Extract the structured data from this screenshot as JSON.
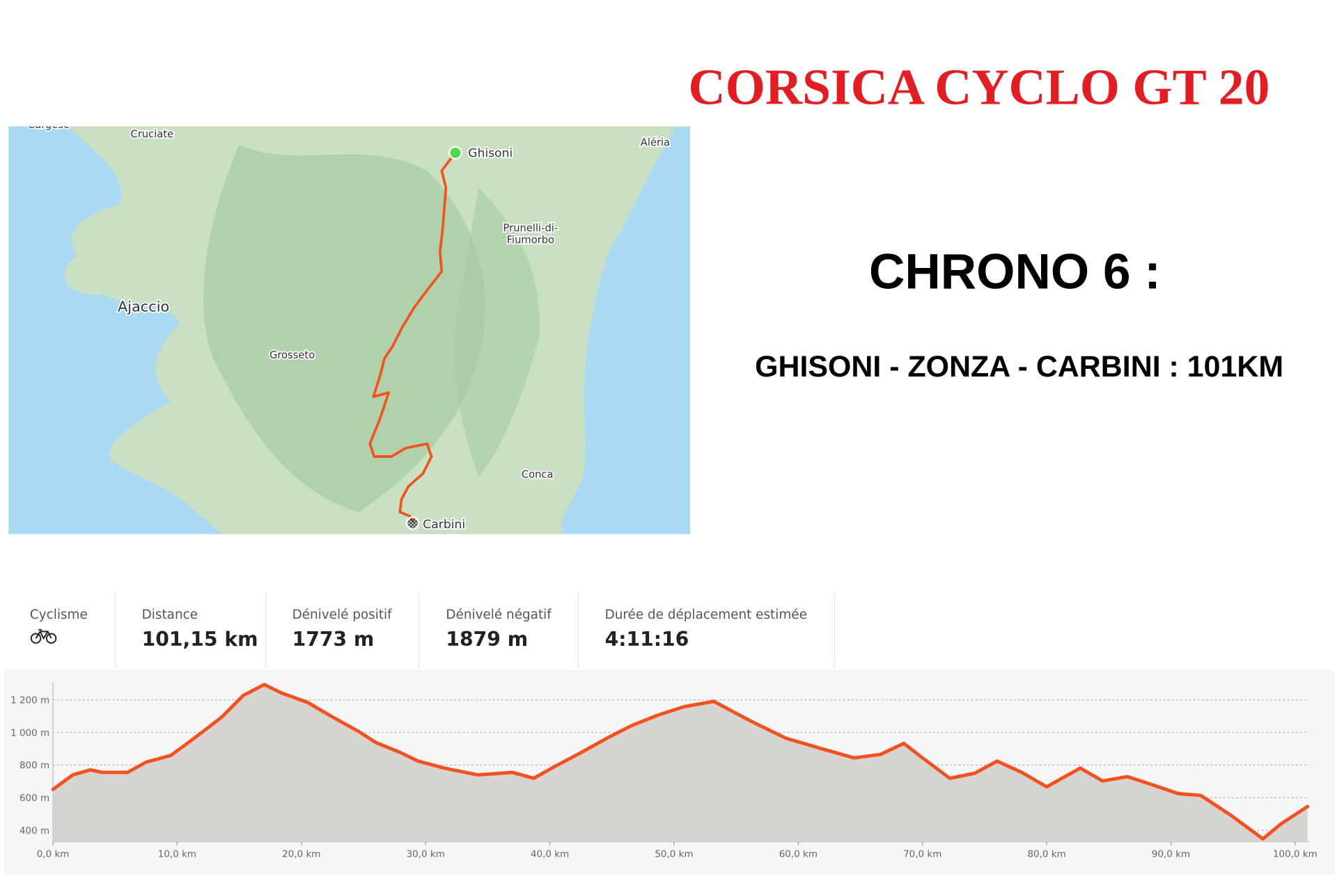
{
  "header": {
    "title": "CORSICA CYCLO GT 20"
  },
  "chrono": {
    "title": "CHRONO 6 :",
    "route": "GHISONI - ZONZA - CARBINI : 101KM"
  },
  "map": {
    "places": [
      {
        "lines": [
          "Cargèse"
        ]
      },
      {
        "lines": [
          "Cruciate"
        ]
      },
      {
        "lines": [
          "Aléria"
        ]
      },
      {
        "lines": [
          "Ghisoni"
        ]
      },
      {
        "lines": [
          "Prunelli-di-",
          "Fiumorbo"
        ]
      },
      {
        "lines": [
          "Ajaccio"
        ]
      },
      {
        "lines": [
          "Grosseto"
        ]
      },
      {
        "lines": [
          "Conca"
        ]
      },
      {
        "lines": [
          "Carbini"
        ]
      }
    ]
  },
  "stats": {
    "activity": "Cyclisme",
    "items": [
      {
        "label": "Distance",
        "value": "101,15 km"
      },
      {
        "label": "Dénivelé positif",
        "value": "1773 m"
      },
      {
        "label": "Dénivelé négatif",
        "value": "1879 m"
      },
      {
        "label": "Durée de déplacement estimée",
        "value": "4:11:16"
      }
    ]
  },
  "chart_data": {
    "type": "line",
    "color": "#f4511e",
    "fill": "#d6d4d0",
    "grid": true,
    "x": [
      0,
      1.6,
      3,
      4,
      6,
      7.5,
      9.5,
      10.9,
      12,
      13.6,
      15.3,
      17,
      18.4,
      20.5,
      22.5,
      24.6,
      26,
      28,
      29.4,
      31.5,
      34.2,
      37,
      38.7,
      40.4,
      42.5,
      44.6,
      46.6,
      48.7,
      50.8,
      53.2,
      56.2,
      59,
      61.8,
      64.5,
      66.6,
      68.5,
      70,
      72.2,
      74.2,
      76,
      78,
      80,
      82.7,
      84.5,
      86.5,
      88.6,
      90.6,
      92.4,
      94.8,
      97.4,
      98.9,
      101
    ],
    "values": [
      651,
      740,
      771,
      755,
      755,
      818,
      860,
      938,
      1001,
      1095,
      1226,
      1294,
      1242,
      1184,
      1095,
      1006,
      938,
      876,
      824,
      782,
      740,
      755,
      719,
      792,
      876,
      965,
      1043,
      1106,
      1158,
      1190,
      1069,
      965,
      902,
      844,
      865,
      933,
      844,
      719,
      750,
      824,
      755,
      667,
      782,
      703,
      729,
      677,
      625,
      614,
      494,
      348,
      442,
      546
    ],
    "xlim": [
      0,
      101.15
    ],
    "ylim": [
      330,
      1310
    ],
    "yticks": [
      {
        "value": 400,
        "label": "400 m"
      },
      {
        "value": 600,
        "label": "600 m"
      },
      {
        "value": 800,
        "label": "800 m"
      },
      {
        "value": 1000,
        "label": "1 000 m"
      },
      {
        "value": 1200,
        "label": "1 200 m"
      }
    ],
    "xticks": [
      {
        "value": 0,
        "label": "0,0 km"
      },
      {
        "value": 10,
        "label": "10,0 km"
      },
      {
        "value": 20,
        "label": "20,0 km"
      },
      {
        "value": 30,
        "label": "30,0 km"
      },
      {
        "value": 40,
        "label": "40,0 km"
      },
      {
        "value": 50,
        "label": "50,0 km"
      },
      {
        "value": 60,
        "label": "60,0 km"
      },
      {
        "value": 70,
        "label": "70,0 km"
      },
      {
        "value": 80,
        "label": "80,0 km"
      },
      {
        "value": 90,
        "label": "90,0 km"
      },
      {
        "value": 100,
        "label": "100,0 km"
      }
    ]
  }
}
